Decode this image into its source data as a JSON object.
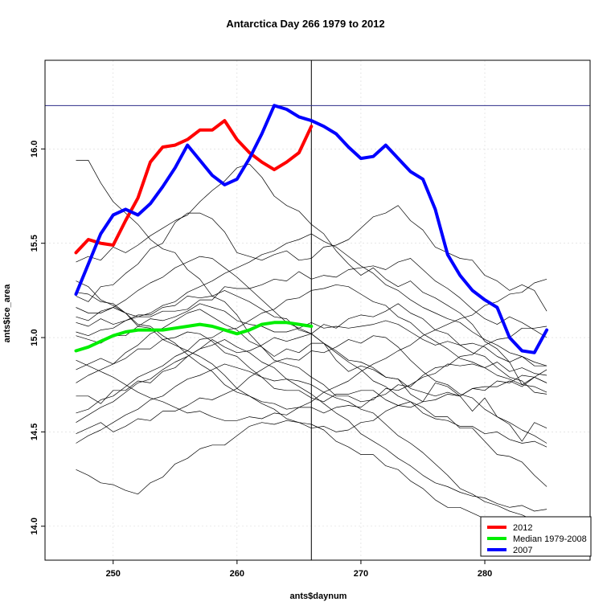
{
  "chart_data": {
    "type": "line",
    "title": "Antarctica Day 266 1979 to 2012",
    "xlabel": "ants$daynum",
    "ylabel": "ants$ice_area",
    "xlim": [
      244.5,
      288.5
    ],
    "ylim": [
      13.82,
      16.47
    ],
    "x_ticks": [
      250,
      260,
      270,
      280
    ],
    "y_ticks": [
      14.0,
      14.5,
      15.0,
      15.5,
      16.0
    ],
    "x_tick_labels": [
      "250",
      "260",
      "270",
      "280"
    ],
    "y_tick_labels": [
      "14.0",
      "14.5",
      "15.0",
      "15.5",
      "16.0"
    ],
    "grid": true,
    "vertical_line": {
      "x": 266
    },
    "horizontal_line": {
      "y": 16.23
    },
    "legend": {
      "position": "bottom-right",
      "entries": [
        {
          "label": "2012",
          "color": "#ff0000"
        },
        {
          "label": "Median 1979-2008",
          "color": "#00ee00"
        },
        {
          "label": "2007",
          "color": "#0000ff"
        }
      ]
    },
    "series": [
      {
        "name": "2012",
        "color": "#ff0000",
        "width": 4,
        "x": [
          247,
          248,
          249,
          250,
          251,
          252,
          253,
          254,
          255,
          256,
          257,
          258,
          259,
          260,
          261,
          262,
          263,
          264,
          265,
          266
        ],
        "values": [
          15.45,
          15.52,
          15.5,
          15.49,
          15.62,
          15.74,
          15.93,
          16.01,
          16.02,
          16.05,
          16.1,
          16.1,
          16.15,
          16.05,
          15.98,
          15.93,
          15.89,
          15.93,
          15.98,
          16.12
        ]
      },
      {
        "name": "Median 1979-2008",
        "color": "#00ee00",
        "width": 4,
        "x": [
          247,
          248,
          249,
          250,
          251,
          252,
          253,
          254,
          255,
          256,
          257,
          258,
          259,
          260,
          261,
          262,
          263,
          264,
          265,
          266
        ],
        "values": [
          14.93,
          14.95,
          14.98,
          15.01,
          15.03,
          15.04,
          15.04,
          15.04,
          15.05,
          15.06,
          15.07,
          15.06,
          15.04,
          15.02,
          15.04,
          15.07,
          15.08,
          15.08,
          15.07,
          15.06
        ]
      },
      {
        "name": "2007",
        "color": "#0000ff",
        "width": 4,
        "x": [
          247,
          248,
          249,
          250,
          251,
          252,
          253,
          254,
          255,
          256,
          257,
          258,
          259,
          260,
          261,
          262,
          263,
          264,
          265,
          266,
          267,
          268,
          269,
          270,
          271,
          272,
          273,
          274,
          275,
          276,
          277,
          278,
          279,
          280,
          281,
          282,
          283,
          284,
          285
        ],
        "values": [
          15.23,
          15.39,
          15.55,
          15.65,
          15.68,
          15.65,
          15.71,
          15.8,
          15.9,
          16.02,
          15.94,
          15.86,
          15.81,
          15.84,
          15.95,
          16.08,
          16.23,
          16.21,
          16.17,
          16.15,
          16.12,
          16.08,
          16.01,
          15.95,
          15.96,
          16.02,
          15.95,
          15.88,
          15.84,
          15.68,
          15.44,
          15.33,
          15.25,
          15.2,
          15.16,
          15.0,
          14.93,
          14.92,
          15.04
        ]
      }
    ],
    "background_series": [
      [
        15.94,
        15.94,
        15.82,
        15.72,
        15.66,
        15.6,
        15.52,
        15.47,
        15.45,
        15.36,
        15.31,
        15.22,
        15.19,
        15.12,
        15.02,
        14.95,
        14.9,
        14.94,
        14.92,
        14.97,
        14.97,
        14.88,
        14.82,
        14.85,
        14.83,
        14.79,
        14.78,
        14.7,
        14.66,
        14.76,
        14.74,
        14.69,
        14.61,
        14.68,
        14.58,
        14.54,
        14.45,
        14.55,
        14.52
      ],
      [
        15.4,
        15.43,
        15.41,
        15.48,
        15.45,
        15.49,
        15.54,
        15.58,
        15.62,
        15.65,
        15.72,
        15.78,
        15.83,
        15.9,
        15.92,
        15.85,
        15.75,
        15.7,
        15.67,
        15.6,
        15.55,
        15.46,
        15.39,
        15.33,
        15.37,
        15.31,
        15.27,
        15.3,
        15.24,
        15.21,
        15.17,
        15.13,
        15.07,
        14.98,
        14.94,
        14.87,
        14.75,
        14.79,
        14.76
      ],
      [
        15.22,
        15.19,
        15.27,
        15.28,
        15.34,
        15.39,
        15.47,
        15.5,
        15.61,
        15.66,
        15.66,
        15.63,
        15.56,
        15.45,
        15.43,
        15.41,
        15.44,
        15.46,
        15.41,
        15.42,
        15.48,
        15.49,
        15.52,
        15.58,
        15.64,
        15.66,
        15.7,
        15.62,
        15.57,
        15.48,
        15.45,
        15.42,
        15.41,
        15.33,
        15.3,
        15.25,
        15.28,
        15.25,
        15.14
      ],
      [
        15.16,
        15.13,
        15.13,
        15.16,
        15.13,
        15.11,
        15.11,
        15.14,
        15.14,
        15.15,
        15.2,
        15.2,
        15.27,
        15.26,
        15.26,
        15.28,
        15.31,
        15.3,
        15.35,
        15.31,
        15.33,
        15.32,
        15.36,
        15.37,
        15.38,
        15.36,
        15.4,
        15.42,
        15.36,
        15.3,
        15.26,
        15.21,
        15.15,
        15.1,
        15.07,
        15.11,
        15.08,
        15.04,
        15.0
      ],
      [
        15.01,
        14.99,
        14.97,
        15.01,
        15.01,
        15.06,
        15.1,
        15.09,
        15.11,
        15.14,
        15.18,
        15.16,
        15.14,
        15.09,
        15.07,
        15.06,
        15.03,
        15.03,
        15.05,
        15.08,
        15.05,
        15.06,
        15.05,
        15.06,
        15.07,
        15.09,
        15.07,
        15.03,
        14.99,
        14.96,
        14.98,
        14.96,
        14.97,
        14.95,
        14.9,
        14.87,
        14.9,
        14.85,
        14.85
      ],
      [
        14.83,
        14.86,
        14.89,
        14.86,
        14.89,
        14.94,
        14.94,
        14.99,
        15.0,
        15.03,
        15.02,
        14.98,
        14.92,
        14.9,
        14.84,
        14.79,
        14.73,
        14.72,
        14.72,
        14.68,
        14.66,
        14.7,
        14.7,
        14.72,
        14.72,
        14.67,
        14.64,
        14.66,
        14.63,
        14.58,
        14.58,
        14.52,
        14.52,
        14.45,
        14.38,
        14.37,
        14.34,
        14.27,
        14.21
      ],
      [
        14.69,
        14.69,
        14.65,
        14.72,
        14.72,
        14.77,
        14.76,
        14.82,
        14.84,
        14.9,
        14.94,
        14.99,
        14.95,
        14.92,
        14.93,
        14.96,
        15.0,
        14.98,
        15.0,
        15.02,
        15.07,
        15.05,
        15.1,
        15.12,
        15.11,
        15.14,
        15.18,
        15.13,
        15.1,
        15.04,
        15.02,
        14.96,
        14.92,
        14.9,
        14.84,
        14.79,
        14.77,
        14.71,
        14.7
      ],
      [
        14.49,
        14.52,
        14.55,
        14.5,
        14.53,
        14.57,
        14.56,
        14.61,
        14.61,
        14.64,
        14.68,
        14.67,
        14.7,
        14.73,
        14.79,
        14.83,
        14.87,
        14.89,
        14.88,
        14.93,
        14.92,
        14.95,
        14.99,
        14.97,
        15.01,
        15.0,
        14.95,
        14.88,
        14.82,
        14.77,
        14.75,
        14.7,
        14.68,
        14.62,
        14.58,
        14.55,
        14.51,
        14.48,
        14.44
      ],
      [
        14.3,
        14.27,
        14.23,
        14.22,
        14.19,
        14.17,
        14.23,
        14.26,
        14.33,
        14.36,
        14.41,
        14.43,
        14.43,
        14.48,
        14.53,
        14.55,
        14.54,
        14.56,
        14.55,
        14.54,
        14.51,
        14.45,
        14.42,
        14.38,
        14.38,
        14.32,
        14.3,
        14.24,
        14.2,
        14.14,
        14.1,
        14.1,
        14.07,
        14.04,
        14.0,
        13.97,
        13.94,
        13.9,
        13.88
      ],
      [
        15.3,
        15.27,
        15.2,
        15.17,
        15.13,
        15.06,
        15.05,
        14.99,
        14.96,
        14.93,
        14.9,
        14.86,
        14.8,
        14.73,
        14.69,
        14.65,
        14.62,
        14.57,
        14.55,
        14.52,
        14.53,
        14.5,
        14.51,
        14.55,
        14.56,
        14.61,
        14.64,
        14.63,
        14.66,
        14.67,
        14.7,
        14.69,
        14.73,
        14.74,
        14.74,
        14.77,
        14.74,
        14.79,
        14.76
      ],
      [
        15.08,
        15.06,
        15.1,
        15.07,
        15.09,
        15.12,
        15.12,
        15.16,
        15.17,
        15.22,
        15.21,
        15.22,
        15.25,
        15.22,
        15.19,
        15.15,
        15.11,
        15.1,
        15.04,
        15.02,
        14.97,
        14.92,
        14.87,
        14.83,
        14.77,
        14.74,
        14.69,
        14.66,
        14.6,
        14.57,
        14.56,
        14.53,
        14.53,
        14.49,
        14.5,
        14.46,
        14.44,
        14.45,
        14.42
      ],
      [
        14.76,
        14.8,
        14.83,
        14.86,
        14.92,
        14.96,
        15.02,
        15.05,
        15.09,
        15.13,
        15.15,
        15.11,
        15.07,
        15.04,
        14.98,
        14.95,
        14.88,
        14.86,
        14.84,
        14.79,
        14.75,
        14.69,
        14.69,
        14.66,
        14.67,
        14.73,
        14.72,
        14.75,
        14.79,
        14.81,
        14.86,
        14.85,
        14.86,
        14.84,
        14.87,
        14.82,
        14.84,
        14.81,
        14.8
      ],
      [
        14.6,
        14.62,
        14.67,
        14.69,
        14.74,
        14.79,
        14.82,
        14.85,
        14.9,
        14.93,
        14.99,
        15.0,
        15.04,
        15.05,
        15.09,
        15.13,
        15.15,
        15.2,
        15.21,
        15.25,
        15.26,
        15.28,
        15.27,
        15.23,
        15.19,
        15.17,
        15.11,
        15.08,
        15.02,
        14.98,
        14.94,
        14.89,
        14.87,
        14.84,
        14.8,
        14.78,
        14.75,
        14.74,
        14.71
      ],
      [
        15.24,
        15.23,
        15.19,
        15.18,
        15.13,
        15.07,
        15.06,
        15.01,
        14.97,
        14.91,
        14.86,
        14.82,
        14.75,
        14.71,
        14.69,
        14.66,
        14.65,
        14.62,
        14.63,
        14.63,
        14.6,
        14.63,
        14.64,
        14.63,
        14.68,
        14.7,
        14.75,
        14.74,
        14.8,
        14.84,
        14.85,
        14.9,
        14.91,
        14.96,
        14.99,
        15.0,
        15.05,
        15.05,
        15.06
      ],
      [
        14.44,
        14.48,
        14.51,
        14.55,
        14.59,
        14.62,
        14.67,
        14.69,
        14.74,
        14.78,
        14.8,
        14.83,
        14.86,
        14.84,
        14.82,
        14.79,
        14.77,
        14.78,
        14.77,
        14.75,
        14.71,
        14.68,
        14.66,
        14.62,
        14.6,
        14.54,
        14.48,
        14.44,
        14.39,
        14.33,
        14.27,
        14.2,
        14.17,
        14.13,
        14.11,
        14.08,
        14.06,
        14.03,
        14.0
      ],
      [
        15.11,
        15.09,
        15.14,
        15.16,
        15.2,
        15.25,
        15.29,
        15.32,
        15.37,
        15.4,
        15.43,
        15.42,
        15.37,
        15.32,
        15.26,
        15.2,
        15.14,
        15.08,
        15.05,
        15.02,
        14.97,
        14.93,
        14.88,
        14.87,
        14.84,
        14.79,
        14.78,
        14.73,
        14.71,
        14.69,
        14.71,
        14.69,
        14.73,
        14.72,
        14.77,
        14.76,
        14.8,
        14.79,
        14.83
      ],
      [
        14.88,
        14.85,
        14.82,
        14.79,
        14.75,
        14.71,
        14.68,
        14.66,
        14.63,
        14.6,
        14.61,
        14.58,
        14.56,
        14.56,
        14.58,
        14.57,
        14.6,
        14.59,
        14.63,
        14.66,
        14.71,
        14.74,
        14.77,
        14.82,
        14.86,
        14.89,
        14.93,
        14.96,
        15.01,
        15.04,
        15.07,
        15.1,
        15.12,
        15.17,
        15.19,
        15.23,
        15.24,
        15.29,
        15.31
      ],
      [
        14.55,
        14.59,
        14.63,
        14.66,
        14.71,
        14.76,
        14.78,
        14.83,
        14.87,
        14.9,
        14.94,
        14.96,
        14.99,
        14.95,
        14.92,
        14.87,
        14.84,
        14.78,
        14.74,
        14.7,
        14.65,
        14.6,
        14.56,
        14.49,
        14.45,
        14.41,
        14.36,
        14.32,
        14.27,
        14.23,
        14.21,
        14.18,
        14.16,
        14.15,
        14.12,
        14.1,
        14.11,
        14.08,
        14.09
      ],
      [
        15.03,
        15.01,
        15.04,
        15.05,
        15.09,
        15.11,
        15.13,
        15.17,
        15.19,
        15.24,
        15.27,
        15.3,
        15.34,
        15.37,
        15.4,
        15.44,
        15.46,
        15.5,
        15.52,
        15.55,
        15.51,
        15.48,
        15.43,
        15.38,
        15.34,
        15.28,
        15.25,
        15.2,
        15.16,
        15.13,
        15.1,
        15.08,
        15.03,
        14.99,
        14.96,
        14.92,
        14.9,
        14.87,
        14.85
      ]
    ]
  }
}
